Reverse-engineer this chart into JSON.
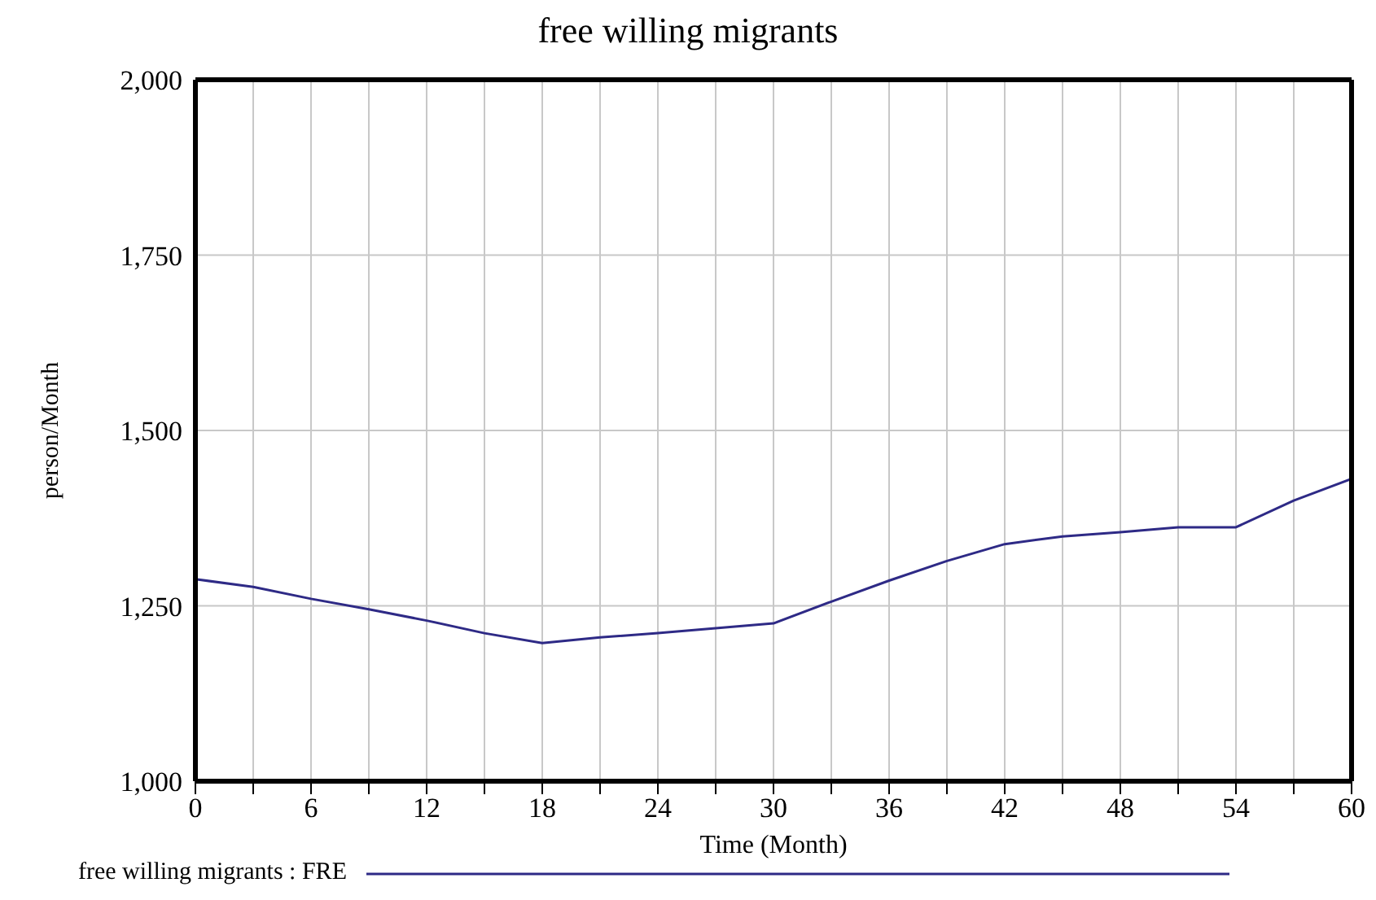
{
  "chart_data": {
    "type": "line",
    "title": "free willing migrants",
    "xlabel": "Time (Month)",
    "ylabel": "person/Month",
    "x": [
      0,
      3,
      6,
      9,
      12,
      15,
      18,
      21,
      24,
      27,
      30,
      33,
      36,
      39,
      42,
      45,
      48,
      51,
      54,
      57,
      60
    ],
    "series": [
      {
        "name": "free willing migrants : FRE",
        "color": "#2e2a86",
        "values": [
          1288,
          1277,
          1260,
          1245,
          1229,
          1211,
          1197,
          1205,
          1211,
          1218,
          1225,
          1256,
          1286,
          1314,
          1338,
          1349,
          1355,
          1362,
          1362,
          1400,
          1431
        ]
      }
    ],
    "xlim": [
      0,
      60
    ],
    "xticks": [
      0,
      {
        "value": 3,
        "label": null
      },
      6,
      {
        "value": 9,
        "label": null
      },
      12,
      {
        "value": 15,
        "label": null
      },
      18,
      {
        "value": 21,
        "label": null
      },
      24,
      {
        "value": 27,
        "label": null
      },
      30,
      {
        "value": 33,
        "label": null
      },
      36,
      {
        "value": 39,
        "label": null
      },
      42,
      {
        "value": 45,
        "label": null
      },
      48,
      {
        "value": 51,
        "label": null
      },
      54,
      {
        "value": 57,
        "label": null
      },
      60
    ],
    "ylim": [
      1000,
      2000
    ],
    "yticks": [
      {
        "value": 1000,
        "label": "1,000"
      },
      {
        "value": 1250,
        "label": "1,250"
      },
      {
        "value": 1500,
        "label": "1,500"
      },
      {
        "value": 1750,
        "label": "1,750"
      },
      {
        "value": 2000,
        "label": "2,000"
      }
    ],
    "grid": true,
    "legend": "bottom left",
    "marker": "none",
    "line_style": "solid"
  }
}
